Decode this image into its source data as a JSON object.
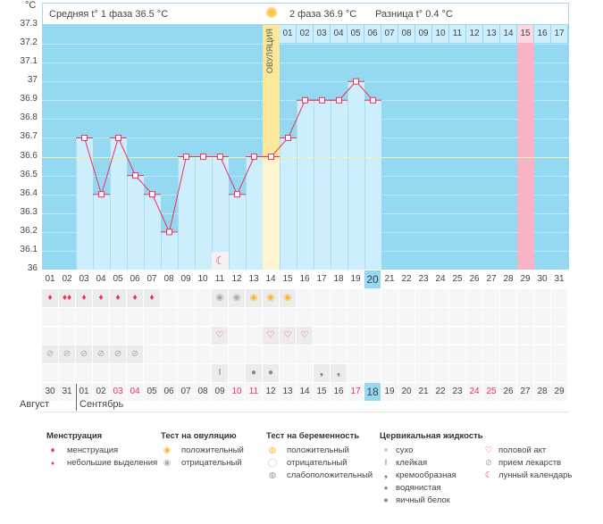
{
  "header": {
    "unit": "°C",
    "phase1": "Средняя t° 1 фаза 36.5 °C",
    "phase2": "2 фаза 36.9 °C",
    "diff": "Разница t° 0.4 °C",
    "ovulation": "ОВУЛЯЦИЯ"
  },
  "chart_data": {
    "type": "line",
    "title": "",
    "ylabel": "°C",
    "ylim": [
      36,
      37.3
    ],
    "y_ticks": [
      "37.3",
      "37.2",
      "37.1",
      "37",
      "36.9",
      "36.8",
      "36.7",
      "36.6",
      "36.5",
      "36.4",
      "36.3",
      "36.2",
      "36.1",
      "36"
    ],
    "cycle_days": [
      "01",
      "02",
      "03",
      "04",
      "05",
      "06",
      "07",
      "08",
      "09",
      "10",
      "11",
      "12",
      "13",
      "14",
      "15",
      "16",
      "17",
      "18",
      "19",
      "20",
      "21",
      "22",
      "23",
      "24",
      "25",
      "26",
      "27",
      "28",
      "29",
      "30",
      "31"
    ],
    "temperatures": [
      null,
      null,
      36.7,
      36.4,
      36.7,
      36.5,
      36.4,
      36.2,
      36.6,
      36.6,
      36.6,
      36.4,
      36.6,
      36.6,
      36.7,
      36.9,
      36.9,
      36.9,
      37.0,
      36.9,
      null,
      null,
      null,
      null,
      null,
      null,
      null,
      null,
      null,
      null,
      null
    ],
    "coverline": 36.6,
    "ovulation_day": 14,
    "current_cycle_day": 20,
    "expected_period_day": 29,
    "luteal_days": [
      "01",
      "02",
      "03",
      "04",
      "05",
      "06",
      "07",
      "08",
      "09",
      "10",
      "11",
      "12",
      "13",
      "14",
      "15",
      "16",
      "17"
    ]
  },
  "rows": {
    "menstruation": {
      "1": "light",
      "2": "heavy",
      "3": "light",
      "4": "light",
      "5": "light",
      "6": "light",
      "7": "light"
    },
    "ovulation_test": {
      "11": "negative",
      "12": "negative",
      "13": "positive",
      "14": "positive",
      "15": "positive"
    },
    "pregnancy_test": {},
    "intercourse": {
      "11": 1,
      "14": 1,
      "15": 1,
      "16": 1
    },
    "medication": {
      "1": 1,
      "2": 1,
      "3": 1,
      "4": 1,
      "5": 1,
      "6": 1
    },
    "cervical": {
      "11": "sticky",
      "13": "egg-white",
      "14": "egg-white",
      "17": "creamy",
      "18": "creamy"
    },
    "moon": {
      "11": 1
    }
  },
  "calendar": {
    "dates": [
      "30",
      "31",
      "01",
      "02",
      "03",
      "04",
      "05",
      "06",
      "07",
      "08",
      "09",
      "10",
      "11",
      "12",
      "13",
      "14",
      "15",
      "16",
      "17",
      "18",
      "19",
      "20",
      "21",
      "22",
      "23",
      "24",
      "25",
      "26",
      "27",
      "28",
      "29"
    ],
    "red": [
      "03",
      "04",
      "10",
      "11",
      "17",
      "24",
      "25"
    ],
    "today_index": 20,
    "month1": "Август",
    "month2": "Сентябрь"
  },
  "legend": {
    "menstruation": {
      "title": "Менструация",
      "items": [
        "менструация",
        "небольшие выделения"
      ]
    },
    "ovulation_test": {
      "title": "Тест на овуляцию",
      "items": [
        "положительный",
        "отрицательный"
      ]
    },
    "pregnancy_test": {
      "title": "Тест на беременность",
      "items": [
        "положительный",
        "отрицательный",
        "слабоположительный"
      ]
    },
    "cervical": {
      "title": "Цервикальная жидкость",
      "items": [
        "сухо",
        "клейкая",
        "кремообразная",
        "водянистая",
        "яичный белок"
      ]
    },
    "other": {
      "items": [
        "половой акт",
        "прием лекарств",
        "лунный календарь"
      ]
    }
  },
  "colors": {
    "chart_bg": "#94d8f2",
    "bar": "#cdeefc",
    "line": "#f0305a",
    "ovulation": "#fbe89a",
    "period": "#f8b4c6",
    "today": "#94d8f2"
  }
}
